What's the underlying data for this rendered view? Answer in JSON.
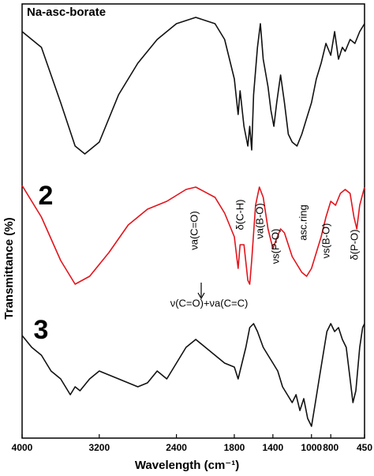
{
  "chart_data": {
    "type": "line",
    "x_label": "Wavelength (cm⁻¹)",
    "y_label": "Transmittance (%)",
    "xlim": [
      4000,
      450
    ],
    "xticks": [
      4000,
      3200,
      2400,
      1800,
      1400,
      1000,
      800,
      450
    ],
    "ylim": [
      0,
      110
    ],
    "annotations": [
      "νa(C=O)",
      "δ(C-H)",
      "νa(B-O)",
      "νs(P-O)",
      "asc.ring",
      "νs(B-O)",
      "δ(P-O)",
      "ν(C=O)+νa(C=C)"
    ],
    "series": [
      {
        "name": "Na-asc-borate",
        "color": "#111111",
        "x": [
          4000,
          3800,
          3600,
          3450,
          3350,
          3200,
          3000,
          2800,
          2600,
          2400,
          2200,
          2000,
          1900,
          1800,
          1760,
          1740,
          1700,
          1660,
          1640,
          1620,
          1600,
          1560,
          1530,
          1500,
          1450,
          1420,
          1390,
          1360,
          1320,
          1280,
          1240,
          1200,
          1150,
          1100,
          1050,
          1000,
          950,
          900,
          850,
          800,
          760,
          720,
          680,
          650,
          600,
          550,
          500,
          450
        ],
        "values": [
          103,
          99,
          85,
          74,
          72,
          75,
          87,
          95,
          101,
          105,
          106.6,
          105,
          101,
          91,
          82,
          88,
          79,
          74,
          79,
          73,
          87,
          99,
          105,
          96,
          89,
          83,
          79,
          85,
          92,
          85,
          77,
          75,
          74,
          77,
          81,
          85,
          91,
          95,
          100,
          97,
          103,
          96,
          99,
          98,
          101,
          100,
          103,
          105
        ]
      },
      {
        "name": "2",
        "color": "#e3141c",
        "x": [
          4000,
          3800,
          3600,
          3450,
          3300,
          3100,
          2900,
          2700,
          2500,
          2300,
          2200,
          2000,
          1900,
          1800,
          1760,
          1740,
          1700,
          1660,
          1640,
          1620,
          1580,
          1540,
          1500,
          1450,
          1400,
          1370,
          1320,
          1280,
          1240,
          1200,
          1150,
          1100,
          1050,
          1000,
          950,
          900,
          850,
          800,
          750,
          700,
          650,
          600,
          560,
          530,
          500,
          450
        ],
        "values": [
          64,
          56,
          45,
          39,
          41,
          47,
          54,
          58,
          60,
          63,
          63.6,
          61,
          57,
          51,
          43,
          49,
          49,
          40,
          39,
          45,
          59,
          63.6,
          61,
          53,
          48,
          50,
          53,
          52,
          49,
          46,
          44,
          42,
          41,
          43,
          47,
          51,
          56,
          60,
          59,
          62,
          63,
          62,
          56,
          53,
          59,
          63.6
        ]
      },
      {
        "name": "3",
        "color": "#111111",
        "x": [
          4000,
          3900,
          3800,
          3700,
          3600,
          3500,
          3450,
          3400,
          3300,
          3200,
          3000,
          2800,
          2700,
          2600,
          2500,
          2400,
          2300,
          2200,
          2100,
          2000,
          1900,
          1800,
          1760,
          1720,
          1680,
          1640,
          1600,
          1560,
          1500,
          1450,
          1400,
          1350,
          1300,
          1250,
          1200,
          1160,
          1120,
          1080,
          1040,
          1000,
          960,
          920,
          880,
          840,
          800,
          760,
          720,
          680,
          640,
          600,
          570,
          540,
          500,
          470,
          450
        ],
        "values": [
          26,
          23,
          21,
          17,
          15,
          11,
          13,
          12,
          15,
          17,
          15,
          13,
          14,
          17,
          15,
          19,
          23,
          25,
          23,
          21,
          19,
          18,
          15,
          19,
          23,
          28,
          29,
          27,
          23,
          21,
          19,
          17,
          13,
          11,
          9,
          11,
          7,
          10,
          5,
          3,
          9,
          15,
          21,
          27,
          29,
          27,
          28,
          25,
          23,
          15,
          9,
          12,
          23,
          28,
          29
        ]
      }
    ]
  }
}
